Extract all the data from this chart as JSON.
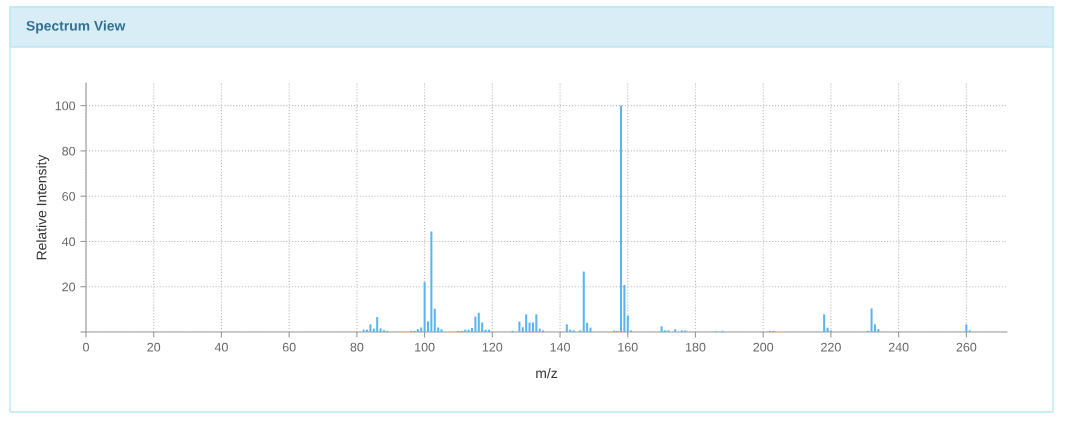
{
  "chart_data": {
    "type": "bar",
    "title": "Spectrum View",
    "xlabel": "m/z",
    "ylabel": "Relative Intensity",
    "color": "#5ab4f0",
    "x": [
      82,
      83,
      84,
      85,
      86,
      87,
      88,
      89,
      96,
      97,
      98,
      99,
      100,
      101,
      102,
      103,
      104,
      105,
      110,
      111,
      112,
      113,
      114,
      115,
      116,
      117,
      118,
      119,
      126,
      128,
      129,
      130,
      131,
      132,
      133,
      134,
      135,
      142,
      143,
      144,
      146,
      147,
      148,
      149,
      156,
      157,
      158,
      159,
      160,
      161,
      170,
      171,
      172,
      174,
      176,
      177,
      186,
      188,
      202,
      203,
      218,
      219,
      220,
      231,
      232,
      233,
      234,
      260,
      261
    ],
    "values": [
      1,
      1,
      3.4,
      1.5,
      6.6,
      1.6,
      0.8,
      0.5,
      0.5,
      0.5,
      1.3,
      2,
      22,
      4.7,
      44.4,
      10.3,
      2,
      1.2,
      0.5,
      0.5,
      1,
      1,
      1.8,
      6.8,
      8.5,
      4.2,
      1,
      1,
      0.5,
      4.6,
      2.1,
      7.8,
      4.2,
      4.2,
      7.8,
      1.5,
      0.7,
      3.4,
      1,
      0.7,
      0.7,
      26.7,
      4.1,
      1.9,
      0.6,
      0.5,
      100,
      20.8,
      7.3,
      0.7,
      2.5,
      0.7,
      0.7,
      1.2,
      0.7,
      0.7,
      0.3,
      0.5,
      0.5,
      0.5,
      7.8,
      1.9,
      0.7,
      0.5,
      10.4,
      3.4,
      1.3,
      3.4,
      0.7
    ],
    "xlim": [
      0,
      272
    ],
    "xticks": [
      0,
      20,
      40,
      60,
      80,
      100,
      120,
      140,
      160,
      180,
      200,
      220,
      240,
      260
    ],
    "ylim": [
      0,
      110
    ],
    "yticks": [
      {
        "value": 0,
        "label": null
      },
      20,
      40,
      60,
      80,
      100
    ],
    "grid": true
  }
}
